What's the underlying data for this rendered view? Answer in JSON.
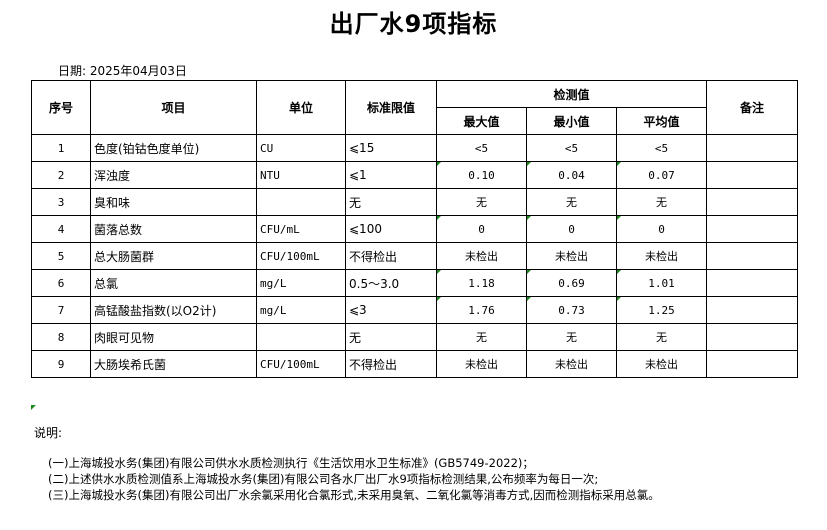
{
  "title": "出厂水9项指标",
  "date": "日期: 2025年04月03日",
  "headers": {
    "no": "序号",
    "item": "项目",
    "unit": "单位",
    "limit": "标准限值",
    "measured": "检测值",
    "max": "最大值",
    "min": "最小值",
    "avg": "平均值",
    "remark": "备注"
  },
  "rows": [
    {
      "no": "1",
      "item": "色度(铂钴色度单位)",
      "unit": "CU",
      "limit": "⩽15",
      "max": "<5",
      "min": "<5",
      "avg": "<5",
      "flag": false
    },
    {
      "no": "2",
      "item": "浑浊度",
      "unit": "NTU",
      "limit": "⩽1",
      "max": "0.10",
      "min": "0.04",
      "avg": "0.07",
      "flag": true
    },
    {
      "no": "3",
      "item": "臭和味",
      "unit": "",
      "limit": "无",
      "max": "无",
      "min": "无",
      "avg": "无",
      "flag": false
    },
    {
      "no": "4",
      "item": "菌落总数",
      "unit": "CFU/mL",
      "limit": "⩽100",
      "max": "0",
      "min": "0",
      "avg": "0",
      "flag": true
    },
    {
      "no": "5",
      "item": "总大肠菌群",
      "unit": "CFU/100mL",
      "limit": "不得检出",
      "max": "未检出",
      "min": "未检出",
      "avg": "未检出",
      "flag": false
    },
    {
      "no": "6",
      "item": "总氯",
      "unit": "mg/L",
      "limit": "0.5～3.0",
      "max": "1.18",
      "min": "0.69",
      "avg": "1.01",
      "flag": true
    },
    {
      "no": "7",
      "item": "高锰酸盐指数(以O2计)",
      "unit": "mg/L",
      "limit": "⩽3",
      "max": "1.76",
      "min": "0.73",
      "avg": "1.25",
      "flag": true
    },
    {
      "no": "8",
      "item": "肉眼可见物",
      "unit": "",
      "limit": "无",
      "max": "无",
      "min": "无",
      "avg": "无",
      "flag": false
    },
    {
      "no": "9",
      "item": "大肠埃希氏菌",
      "unit": "CFU/100mL",
      "limit": "不得检出",
      "max": "未检出",
      "min": "未检出",
      "avg": "未检出",
      "flag": false
    }
  ],
  "notes": {
    "label": "说明:",
    "items": [
      "(一)上海城投水务(集团)有限公司供水水质检测执行《生活饮用水卫生标准》(GB5749-2022)；",
      "(二)上述供水水质检测值系上海城投水务(集团)有限公司各水厂出厂水9项指标检测结果,公布频率为每日一次;",
      "(三)上海城投水务(集团)有限公司出厂水余氯采用化合氯形式,未采用臭氧、二氧化氯等消毒方式,因而检测指标采用总氯。"
    ]
  },
  "colors": {
    "flag": "#1a8a1a"
  }
}
